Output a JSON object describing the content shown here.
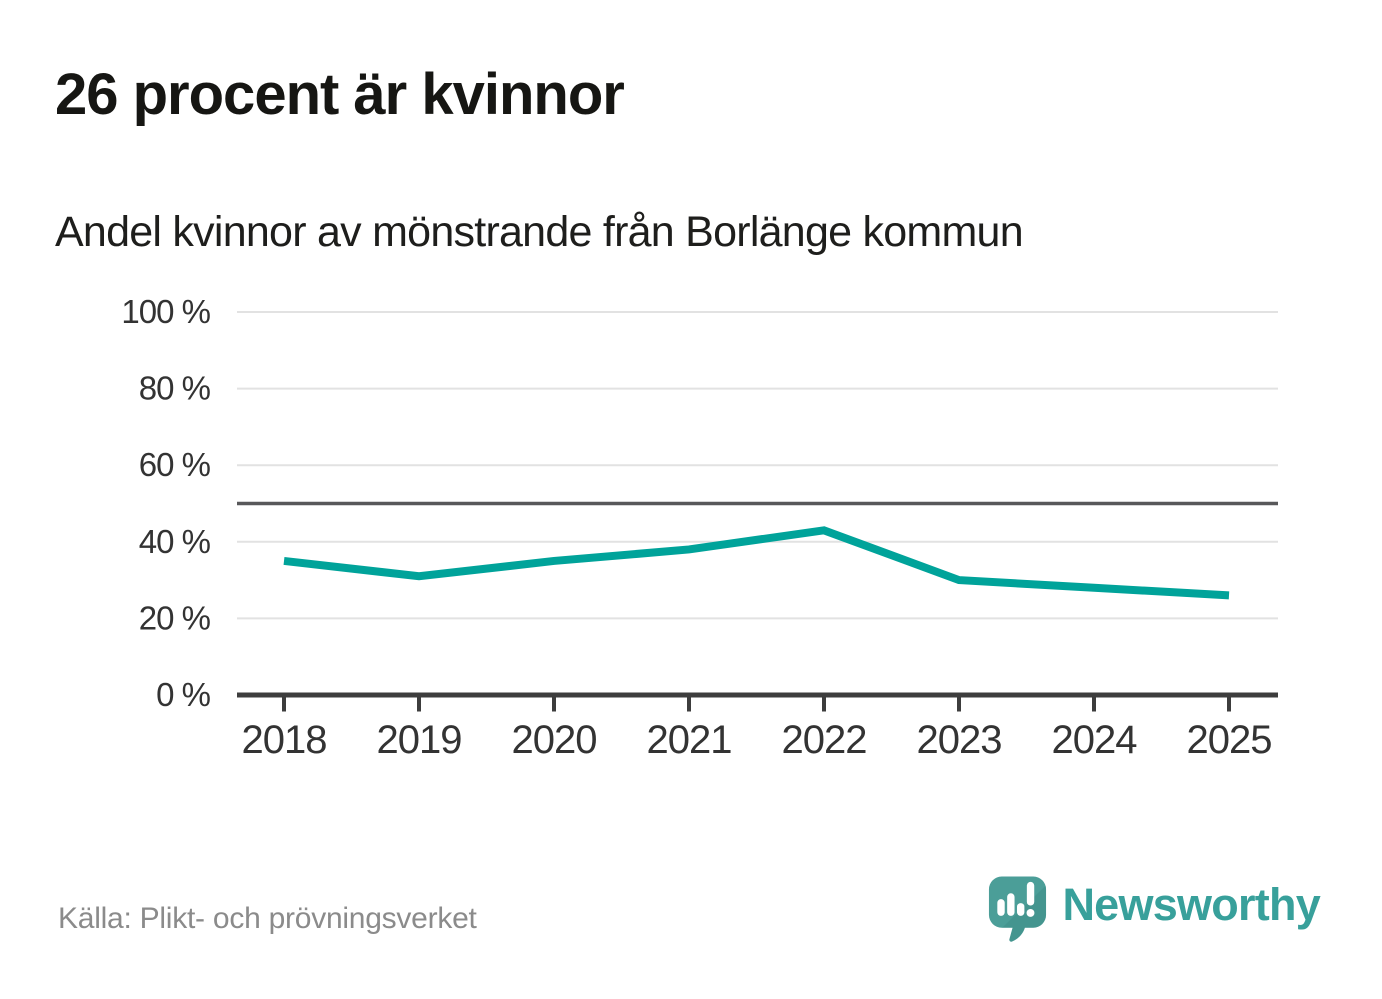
{
  "page": {
    "title": "26 procent är kvinnor",
    "subtitle": "Andel kvinnor av mönstrande från Borlänge kommun",
    "source": "Källa: Plikt- och prövningsverket"
  },
  "logo": {
    "name": "Newsworthy",
    "icon": "newsworthy-speech-bubble-bar-chart-icon"
  },
  "colors": {
    "line": "#00a39a",
    "reference_line": "#58585a",
    "gridline": "#e2e2e2",
    "axis": "#3d3d3d",
    "title_text": "#161613",
    "subtitle_text": "#1e1e1c",
    "tick_text": "#333333",
    "source_text": "#8b8b8b",
    "logo_teal": "#38a09b",
    "logo_icon_teal": "#4b9e98",
    "logo_icon_shade": "#317f7a",
    "logo_icon_glyphs": "#ffffff",
    "background": "#ffffff"
  },
  "chart_data": {
    "type": "line",
    "title": "26 procent är kvinnor",
    "subtitle": "Andel kvinnor av mönstrande från Borlänge kommun",
    "x": [
      "2018",
      "2019",
      "2020",
      "2021",
      "2022",
      "2023",
      "2024",
      "2025"
    ],
    "series": [
      {
        "name": "Andel kvinnor av mönstrande",
        "values": [
          35,
          31,
          35,
          38,
          43,
          30,
          28,
          26
        ]
      }
    ],
    "unit": "%",
    "ylim": [
      0,
      100
    ],
    "yticks": [
      0,
      20,
      40,
      60,
      80,
      100
    ],
    "ytick_label_format": "{v} %",
    "reference_line": 50,
    "grid": true,
    "legend": "none",
    "source": "Källa: Plikt- och prövningsverket"
  }
}
